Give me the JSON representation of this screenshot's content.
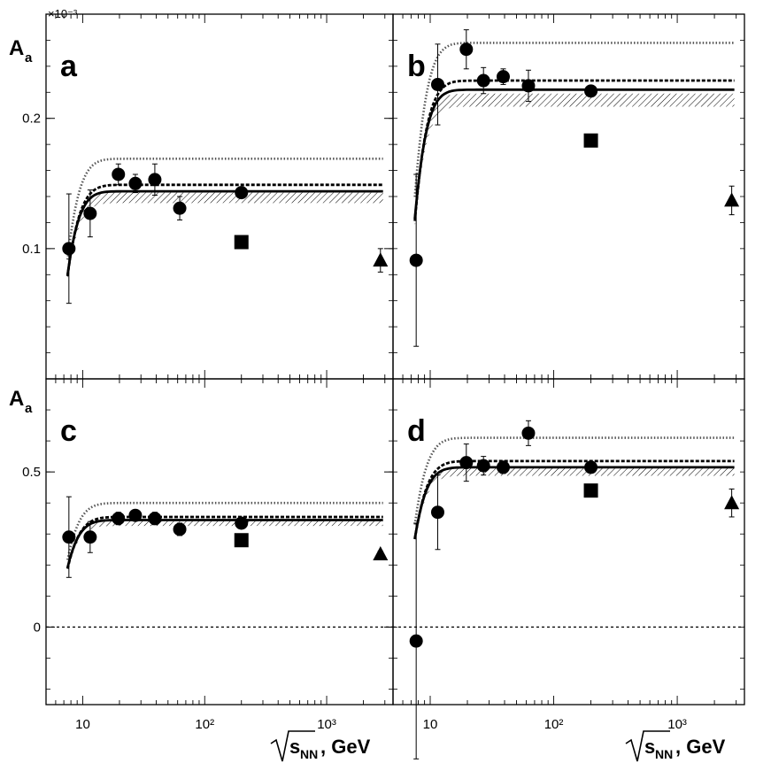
{
  "figure": {
    "y_exponent_label": "×10⁻³",
    "x_axis_title": {
      "root": "s",
      "sub": "NN",
      "unit": ", GeV"
    },
    "y_axis_title": {
      "main": "A",
      "sub": "a"
    }
  },
  "chart_data": [
    {
      "panel": "a",
      "type": "scatter",
      "xscale": "log",
      "xlim": [
        5,
        3500
      ],
      "ylim": [
        0.0,
        0.28
      ],
      "yticks": [
        {
          "v": 0.1,
          "label": "0.1"
        },
        {
          "v": 0.2,
          "label": "0.2"
        }
      ],
      "xticks": [
        {
          "v": 10,
          "label": "10"
        },
        {
          "v": 100,
          "label": "10²"
        },
        {
          "v": 1000,
          "label": "10³"
        }
      ],
      "points": [
        {
          "x": 7.7,
          "y": 0.1,
          "err": 0.042
        },
        {
          "x": 11.5,
          "y": 0.127,
          "err": 0.018
        },
        {
          "x": 19.6,
          "y": 0.157,
          "err": 0.008
        },
        {
          "x": 27,
          "y": 0.15,
          "err": 0.007
        },
        {
          "x": 39,
          "y": 0.153,
          "err": 0.012
        },
        {
          "x": 62.4,
          "y": 0.131,
          "err": 0.009
        },
        {
          "x": 200,
          "y": 0.143,
          "err": 0.003
        }
      ],
      "squares": [
        {
          "x": 200,
          "y": 0.105
        }
      ],
      "triangles": [
        {
          "x": 2760,
          "y": 0.091,
          "err": 0.009
        }
      ],
      "curves": [
        {
          "style": "solid",
          "A": 0.144,
          "B": 0.62
        },
        {
          "style": "dashed",
          "A": 0.149,
          "B": 0.58
        },
        {
          "style": "dotted",
          "A": 0.169,
          "B": 0.6
        }
      ],
      "band": {
        "A": 0.139,
        "B": 0.64,
        "width": 0.008
      },
      "zero_line": false
    },
    {
      "panel": "b",
      "type": "scatter",
      "xscale": "log",
      "xlim": [
        5,
        3500
      ],
      "ylim": [
        0.0,
        0.28
      ],
      "yticks": [],
      "xticks": [
        {
          "v": 10,
          "label": "10"
        },
        {
          "v": 100,
          "label": "10²"
        },
        {
          "v": 1000,
          "label": "10³"
        }
      ],
      "points": [
        {
          "x": 7.7,
          "y": 0.091,
          "err": 0.066
        },
        {
          "x": 11.5,
          "y": 0.226,
          "err": 0.031
        },
        {
          "x": 19.6,
          "y": 0.253,
          "err": 0.015
        },
        {
          "x": 27,
          "y": 0.229,
          "err": 0.01
        },
        {
          "x": 39,
          "y": 0.232,
          "err": 0.006
        },
        {
          "x": 62.4,
          "y": 0.225,
          "err": 0.012
        },
        {
          "x": 200,
          "y": 0.221,
          "err": 0.003
        }
      ],
      "squares": [
        {
          "x": 200,
          "y": 0.183
        }
      ],
      "triangles": [
        {
          "x": 2760,
          "y": 0.137,
          "err": 0.011
        }
      ],
      "curves": [
        {
          "style": "solid",
          "A": 0.222,
          "B": 0.62
        },
        {
          "style": "dashed",
          "A": 0.229,
          "B": 0.58
        },
        {
          "style": "dotted",
          "A": 0.258,
          "B": 0.6
        }
      ],
      "band": {
        "A": 0.214,
        "B": 0.64,
        "width": 0.01
      },
      "zero_line": false
    },
    {
      "panel": "c",
      "type": "scatter",
      "xscale": "log",
      "xlim": [
        5,
        3500
      ],
      "ylim": [
        -0.25,
        0.8
      ],
      "yticks": [
        {
          "v": 0,
          "label": "0"
        },
        {
          "v": 0.5,
          "label": "0.5"
        }
      ],
      "xticks": [
        {
          "v": 10,
          "label": "10"
        },
        {
          "v": 100,
          "label": "10²"
        },
        {
          "v": 1000,
          "label": "10³"
        }
      ],
      "points": [
        {
          "x": 7.7,
          "y": 0.29,
          "err": 0.13
        },
        {
          "x": 11.5,
          "y": 0.29,
          "err": 0.05
        },
        {
          "x": 19.6,
          "y": 0.35,
          "err": 0.02
        },
        {
          "x": 27,
          "y": 0.36,
          "err": 0.015
        },
        {
          "x": 39,
          "y": 0.35,
          "err": 0.02
        },
        {
          "x": 62.4,
          "y": 0.315,
          "err": 0.02
        },
        {
          "x": 200,
          "y": 0.335,
          "err": 0.01
        }
      ],
      "squares": [
        {
          "x": 200,
          "y": 0.28
        }
      ],
      "triangles": [
        {
          "x": 2760,
          "y": 0.235,
          "err": 0.01
        }
      ],
      "curves": [
        {
          "style": "solid",
          "A": 0.345,
          "B": 0.62
        },
        {
          "style": "dashed",
          "A": 0.355,
          "B": 0.58
        },
        {
          "style": "dotted",
          "A": 0.4,
          "B": 0.6
        }
      ],
      "band": {
        "A": 0.335,
        "B": 0.64,
        "width": 0.018
      },
      "zero_line": true
    },
    {
      "panel": "d",
      "type": "scatter",
      "xscale": "log",
      "xlim": [
        5,
        3500
      ],
      "ylim": [
        -0.25,
        0.8
      ],
      "yticks": [],
      "xticks": [
        {
          "v": 10,
          "label": "10"
        },
        {
          "v": 100,
          "label": "10²"
        },
        {
          "v": 1000,
          "label": "10³"
        }
      ],
      "points": [
        {
          "x": 7.7,
          "y": -0.045,
          "err": 0.38
        },
        {
          "x": 11.5,
          "y": 0.37,
          "err": 0.12
        },
        {
          "x": 19.6,
          "y": 0.53,
          "err": 0.06
        },
        {
          "x": 27,
          "y": 0.52,
          "err": 0.03
        },
        {
          "x": 39,
          "y": 0.515,
          "err": 0.02
        },
        {
          "x": 62.4,
          "y": 0.625,
          "err": 0.04
        },
        {
          "x": 200,
          "y": 0.515,
          "err": 0.01
        }
      ],
      "squares": [
        {
          "x": 200,
          "y": 0.44
        }
      ],
      "triangles": [
        {
          "x": 2760,
          "y": 0.4,
          "err": 0.045
        }
      ],
      "curves": [
        {
          "style": "solid",
          "A": 0.515,
          "B": 0.62
        },
        {
          "style": "dashed",
          "A": 0.535,
          "B": 0.58
        },
        {
          "style": "dotted",
          "A": 0.61,
          "B": 0.6
        }
      ],
      "band": {
        "A": 0.5,
        "B": 0.64,
        "width": 0.025
      },
      "zero_line": true
    }
  ]
}
